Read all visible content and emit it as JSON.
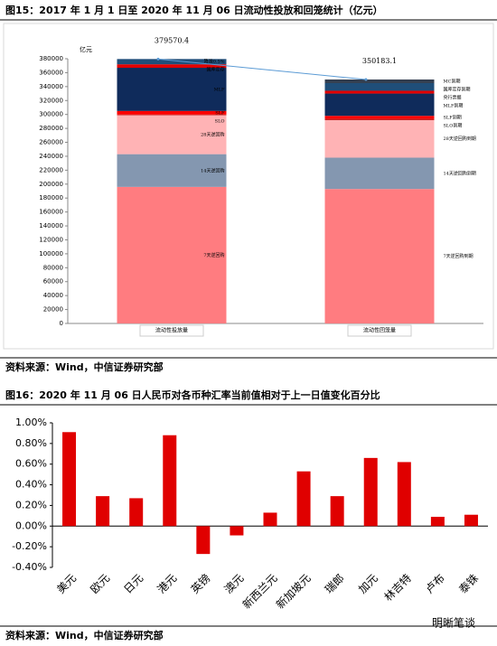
{
  "figure15": {
    "caption": "图15：2017 年 1 月 1 日至 2020 年 11 月 06 日流动性投放和回笼统计（亿元）",
    "source": "资料来源：Wind，中信证券研究部"
  },
  "figure16": {
    "caption": "图16：2020 年 11 月 06 日人民币对各币种汇率当前值相对于上一日值变化百分比",
    "source": "资料来源：Wind，中信证券研究部"
  },
  "watermark": "明晰笔谈",
  "chart_data": [
    {
      "type": "stacked_bar",
      "y_unit": "亿元",
      "ylim": [
        0,
        380000
      ],
      "yticks": [
        0,
        20000,
        40000,
        60000,
        80000,
        100000,
        120000,
        140000,
        160000,
        180000,
        200000,
        220000,
        240000,
        260000,
        280000,
        300000,
        320000,
        340000,
        360000,
        380000
      ],
      "categories": [
        "流动性投放量",
        "流动性回笼量"
      ],
      "totals": [
        379570.4,
        350183.1
      ],
      "total_line_color": "#5b9bd5",
      "stacks": [
        {
          "segments": [
            {
              "name": "7天逆回购",
              "value": 196000,
              "color": "#ff7c80"
            },
            {
              "name": "14天逆回购",
              "value": 47000,
              "color": "#8497b0"
            },
            {
              "name": "28天逆回购",
              "value": 56000,
              "color": "#ffb3b5"
            },
            {
              "name": "SLO",
              "value": 1000,
              "color": "#c00000"
            },
            {
              "name": "SLF",
              "value": 5000,
              "color": "#ff0000"
            },
            {
              "name": "MLF",
              "value": 62000,
              "color": "#0f2b5b"
            },
            {
              "name": "国库定存",
              "value": 5000,
              "color": "#e00000"
            },
            {
              "name": "降准0.5%",
              "value": 7570.4,
              "color": "#1f4e79"
            }
          ]
        },
        {
          "segments": [
            {
              "name": "7天逆回购到期",
              "value": 193000,
              "color": "#ff7c80"
            },
            {
              "name": "14天逆回购到期",
              "value": 45000,
              "color": "#8497b0"
            },
            {
              "name": "28天逆回购到期",
              "value": 54000,
              "color": "#ffb3b5"
            },
            {
              "name": "SLO到期",
              "value": 2000,
              "color": "#c00000"
            },
            {
              "name": "SLF到期",
              "value": 4000,
              "color": "#ff0000"
            },
            {
              "name": "MLF到期",
              "value": 32000,
              "color": "#0f2b5b"
            },
            {
              "name": "央行票据",
              "value": 4000,
              "color": "#e00000"
            },
            {
              "name": "国库定存到期",
              "value": 11000,
              "color": "#1f4e79"
            },
            {
              "name": "MC到期",
              "value": 5183.1,
              "color": "#333f50"
            }
          ]
        }
      ]
    },
    {
      "type": "bar",
      "color": "#e00000",
      "ylim": [
        -0.4,
        1.0
      ],
      "yticks": [
        {
          "value": -0.4,
          "label": "-0.40%"
        },
        {
          "value": -0.2,
          "label": "-0.20%"
        },
        {
          "value": 0,
          "label": "0.00%"
        },
        {
          "value": 0.2,
          "label": "0.20%"
        },
        {
          "value": 0.4,
          "label": "0.40%"
        },
        {
          "value": 0.6,
          "label": "0.60%"
        },
        {
          "value": 0.8,
          "label": "0.80%"
        },
        {
          "value": 1.0,
          "label": "1.00%"
        }
      ],
      "categories": [
        "美元",
        "欧元",
        "日元",
        "港元",
        "英镑",
        "澳元",
        "新西兰元",
        "新加坡元",
        "瑞郎",
        "加元",
        "林吉特",
        "卢布",
        "泰铢"
      ],
      "values": [
        0.91,
        0.29,
        0.27,
        0.88,
        -0.27,
        -0.09,
        0.13,
        0.53,
        0.29,
        0.66,
        0.62,
        0.09,
        0.11
      ]
    }
  ]
}
